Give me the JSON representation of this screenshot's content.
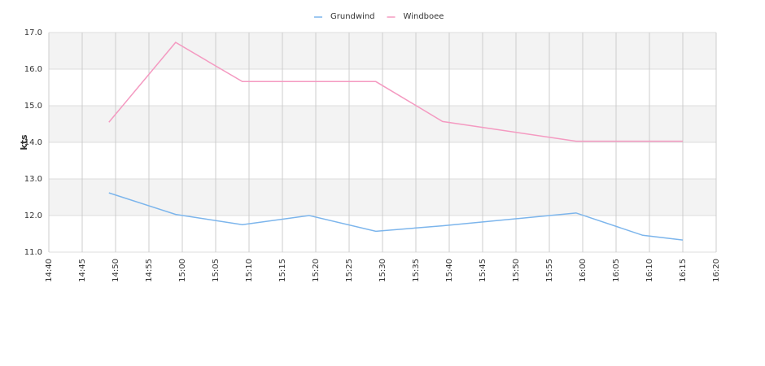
{
  "chart_data": {
    "type": "line",
    "x": [
      "14:49",
      "14:59",
      "15:09",
      "15:19",
      "15:29",
      "15:39",
      "15:59",
      "16:09",
      "16:15"
    ],
    "series": [
      {
        "name": "Grundwind",
        "color": "#7cb5ec",
        "values": [
          12.62,
          12.03,
          11.75,
          12.0,
          11.57,
          11.72,
          12.07,
          11.46,
          11.33
        ]
      },
      {
        "name": "Windboee",
        "color": "#f49ac1",
        "values": [
          14.55,
          16.73,
          15.66,
          15.66,
          15.66,
          14.57,
          14.03,
          14.03,
          14.03
        ]
      }
    ],
    "y_label": "kts",
    "xlim": [
      "14:40",
      "16:20"
    ],
    "xticks": [
      "14:40",
      "14:45",
      "14:50",
      "14:55",
      "15:00",
      "15:05",
      "15:10",
      "15:15",
      "15:20",
      "15:25",
      "15:30",
      "15:35",
      "15:40",
      "15:45",
      "15:50",
      "15:55",
      "16:00",
      "16:05",
      "16:10",
      "16:15",
      "16:20"
    ],
    "ylim": [
      11,
      17
    ],
    "yticks": [
      {
        "value": 11,
        "label": "11.0"
      },
      {
        "value": 12,
        "label": "12.0"
      },
      {
        "value": 13,
        "label": "13.0"
      },
      {
        "value": 14,
        "label": "14.0"
      },
      {
        "value": 15,
        "label": "15.0"
      },
      {
        "value": 16,
        "label": "16.0"
      },
      {
        "value": 17,
        "label": "17.0"
      }
    ],
    "grid": true,
    "legend": "top"
  }
}
